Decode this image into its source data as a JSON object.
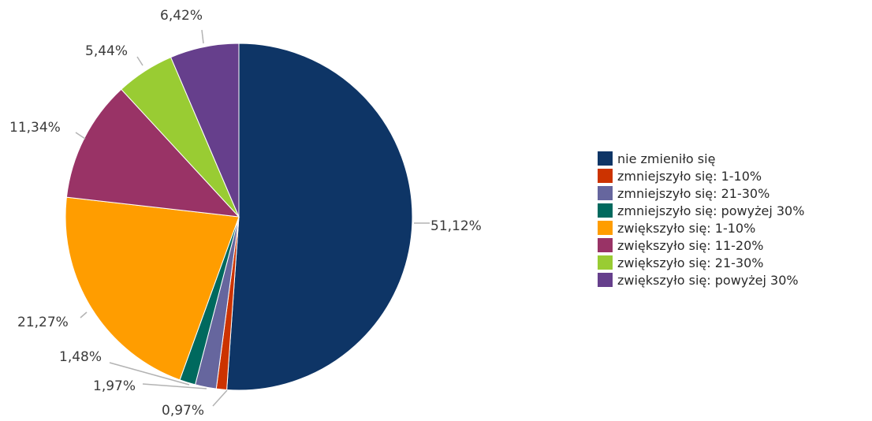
{
  "chart_data": {
    "type": "pie",
    "title": "",
    "slices": [
      {
        "label": "nie zmieniło się",
        "value": 51.12,
        "display": "51,12%",
        "color": "#0e3566"
      },
      {
        "label": "zmniejszyło się: 1-10%",
        "value": 0.97,
        "display": "0,97%",
        "color": "#cc3300"
      },
      {
        "label": "zmniejszyło się: 21-30%",
        "value": 1.97,
        "display": "1,97%",
        "color": "#66669e"
      },
      {
        "label": "zmniejszyło się: powyżej 30%",
        "value": 1.48,
        "display": "1,48%",
        "color": "#00695e"
      },
      {
        "label": "zwiększyło się: 1-10%",
        "value": 21.27,
        "display": "21,27%",
        "color": "#ff9d00"
      },
      {
        "label": "zwiększyło się: 11-20%",
        "value": 11.34,
        "display": "11,34%",
        "color": "#993366"
      },
      {
        "label": "zwiększyło się: 21-30%",
        "value": 5.44,
        "display": "5,44%",
        "color": "#99cc33"
      },
      {
        "label": "zwiększyło się: powyżej 30%",
        "value": 6.42,
        "display": "6,42%",
        "color": "#663f8c"
      }
    ],
    "legend_position": "right"
  }
}
